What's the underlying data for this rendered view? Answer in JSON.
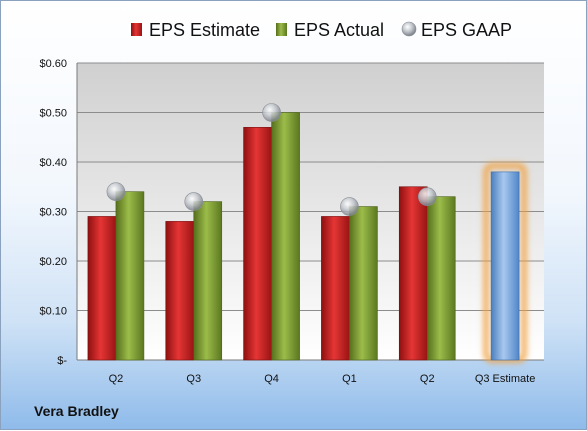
{
  "company": "Vera Bradley",
  "colors": {
    "estimate": "#cc1f1f",
    "actual": "#7a9a2e",
    "gaap": "#b8bdc4",
    "projection": "#6fa0d8",
    "projection_glow": "#f0a040"
  },
  "chart_data": {
    "type": "bar",
    "categories": [
      "Q2",
      "Q3",
      "Q4",
      "Q1",
      "Q2",
      "Q3 Estimate"
    ],
    "series": [
      {
        "name": "EPS Estimate",
        "style": "bar",
        "values": [
          0.29,
          0.28,
          0.47,
          0.29,
          0.35,
          null
        ]
      },
      {
        "name": "EPS Actual",
        "style": "bar",
        "values": [
          0.34,
          0.32,
          0.5,
          0.31,
          0.33,
          null
        ]
      },
      {
        "name": "EPS GAAP",
        "style": "marker",
        "values": [
          0.34,
          0.32,
          0.5,
          0.31,
          0.33,
          null
        ]
      }
    ],
    "projection": {
      "category": "Q3 Estimate",
      "value": 0.38
    },
    "yticks": [
      "$-",
      "$0.10",
      "$0.20",
      "$0.30",
      "$0.40",
      "$0.50",
      "$0.60"
    ],
    "ylim": [
      0,
      0.6
    ],
    "grid": true,
    "legend_position": "top"
  }
}
